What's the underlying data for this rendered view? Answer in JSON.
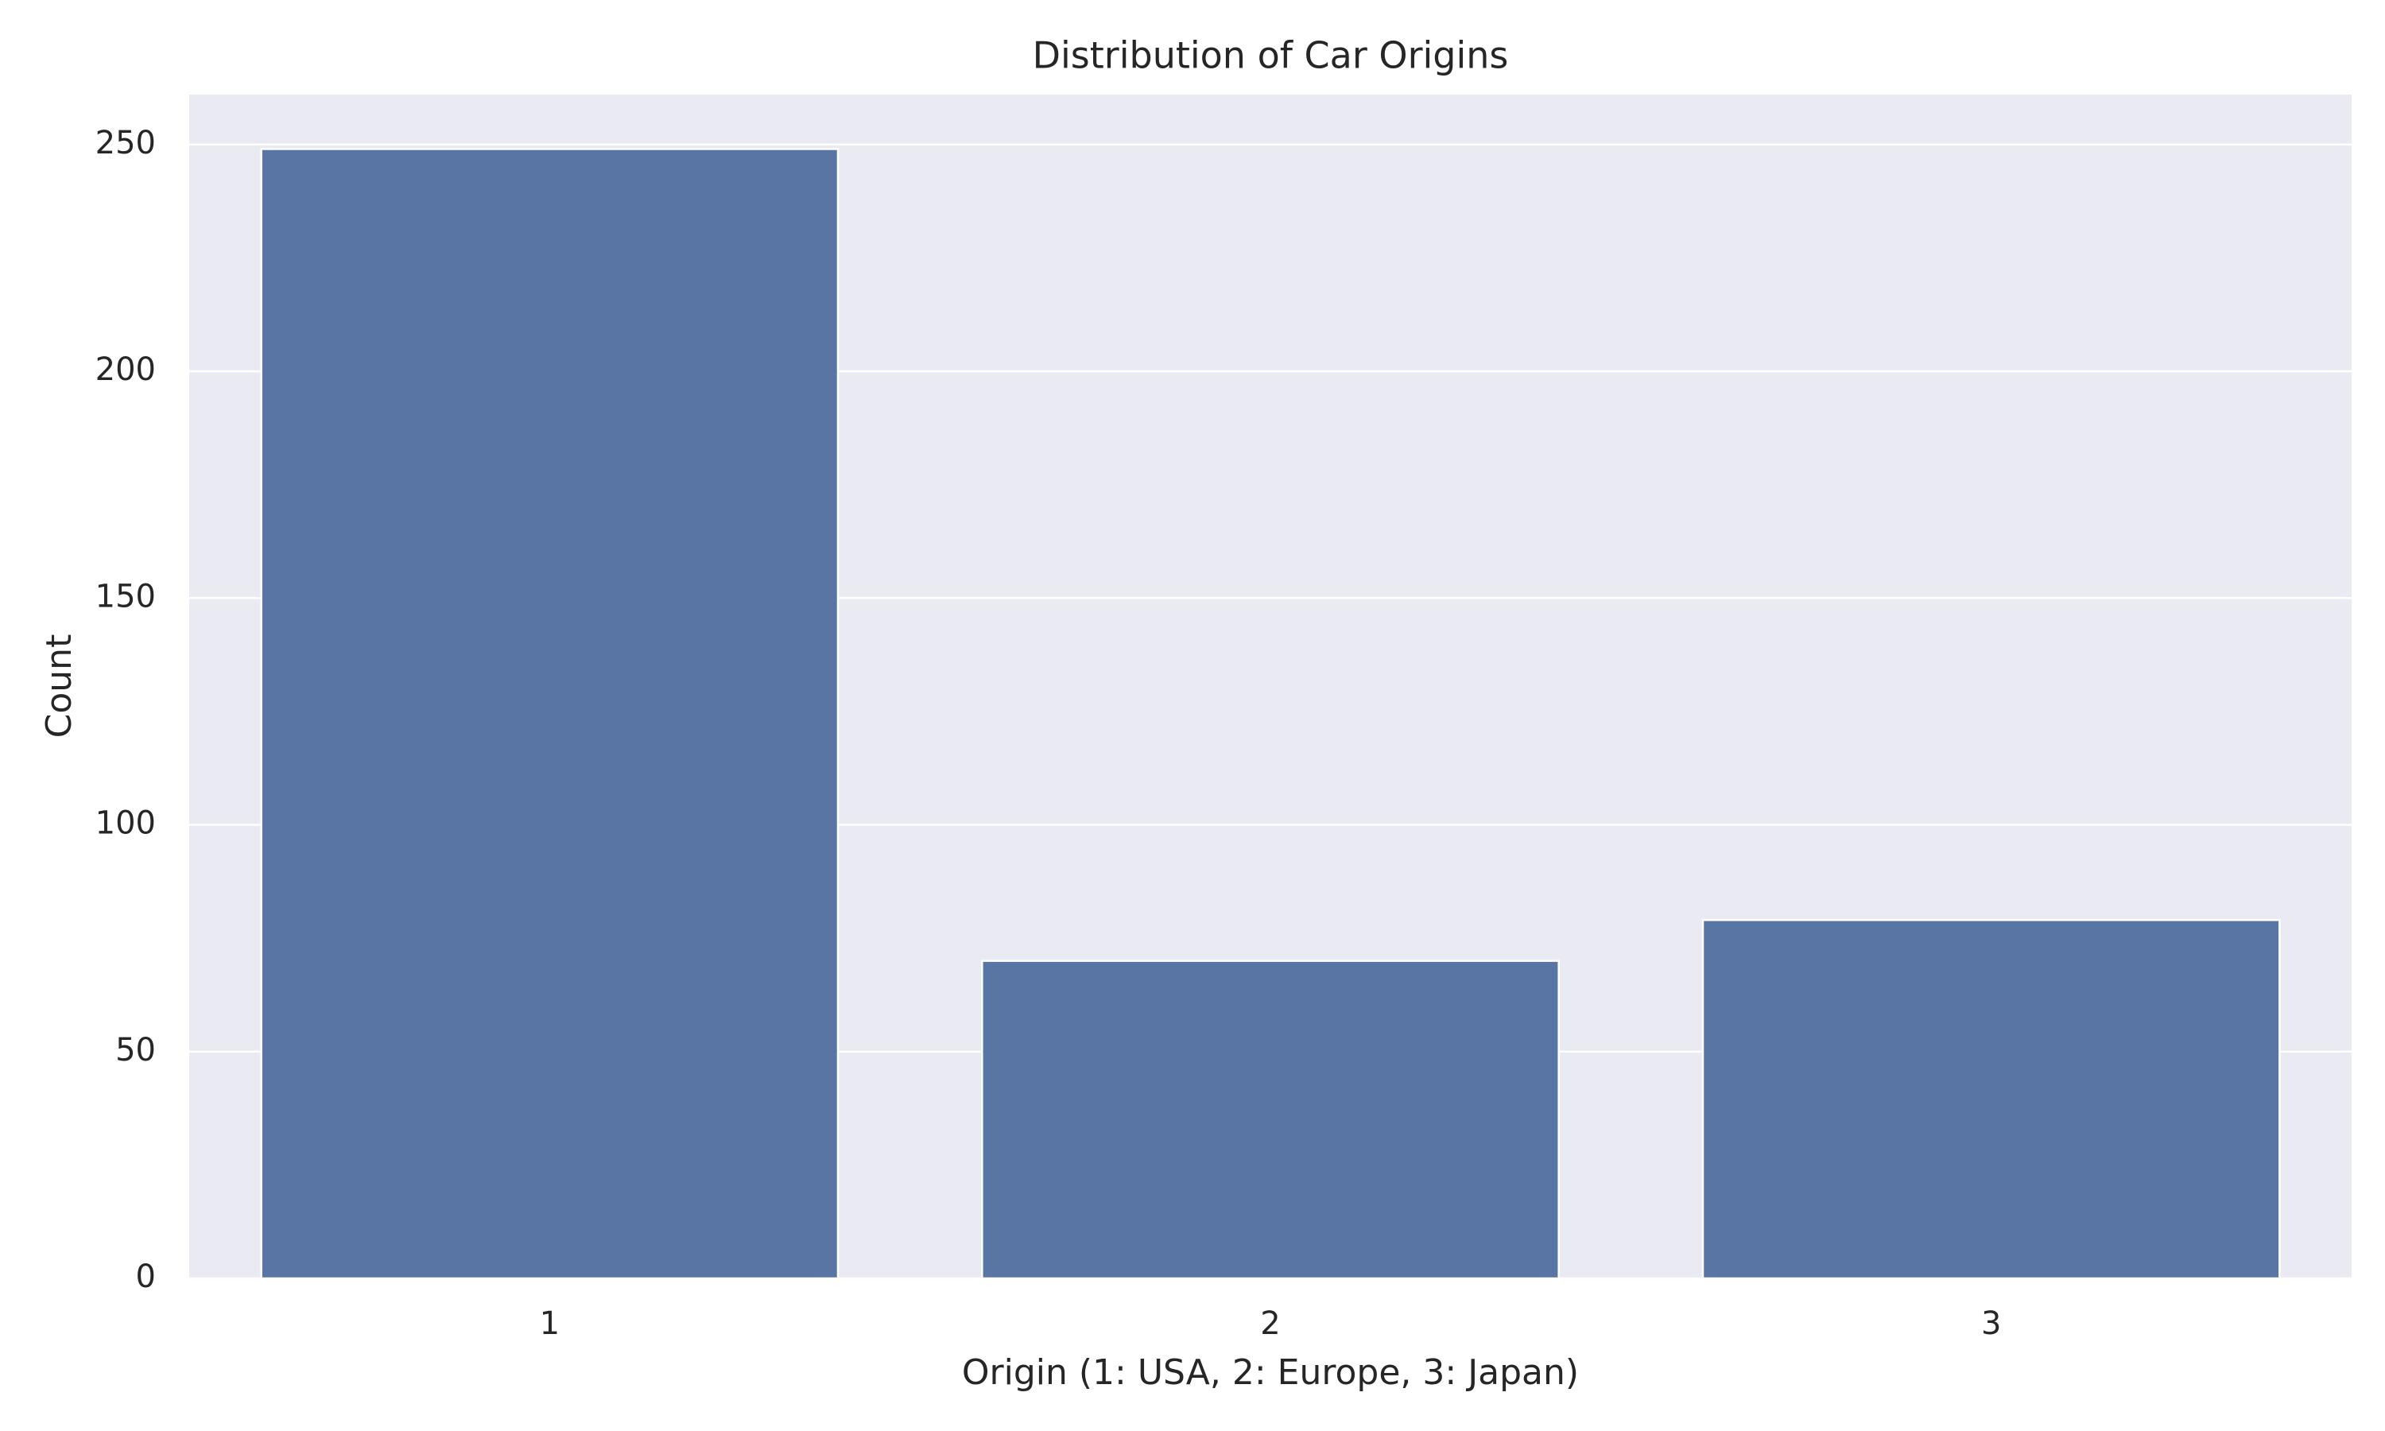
{
  "chart_data": {
    "type": "bar",
    "title": "Distribution of Car Origins",
    "x_label": "Origin (1: USA, 2: Europe, 3: Japan)",
    "y_label": "Count",
    "categories": [
      "1",
      "2",
      "3"
    ],
    "values": [
      249,
      70,
      79
    ],
    "color": "#5975a4",
    "ylim": [
      0,
      261
    ],
    "yticks": [
      0,
      50,
      100,
      150,
      200,
      250
    ],
    "grid": true
  }
}
